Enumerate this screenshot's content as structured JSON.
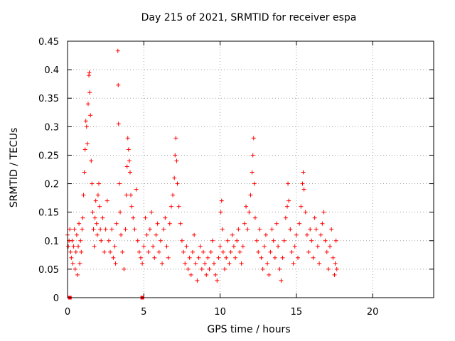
{
  "chart_data": {
    "type": "scatter",
    "title": "Day 215 of 2021, SRMTID for receiver espa",
    "xlabel": "GPS time / hours",
    "ylabel": "SRMTID / TECUs",
    "xlim": [
      0,
      24
    ],
    "ylim": [
      0,
      0.45
    ],
    "xticks": [
      0,
      5,
      10,
      15,
      20
    ],
    "yticks": [
      0,
      0.05,
      0.1,
      0.15,
      0.2,
      0.25,
      0.3,
      0.35,
      0.4,
      0.45
    ],
    "grid": true,
    "marker": "+",
    "color": "#ff0000",
    "series": [
      {
        "name": "SRMTID",
        "points": [
          [
            0.0,
            0.11
          ],
          [
            0.05,
            0.09
          ],
          [
            0.1,
            0.1
          ],
          [
            0.15,
            0.12
          ],
          [
            0.2,
            0.08
          ],
          [
            0.25,
            0.07
          ],
          [
            0.3,
            0.1
          ],
          [
            0.35,
            0.06
          ],
          [
            0.4,
            0.09
          ],
          [
            0.45,
            0.12
          ],
          [
            0.5,
            0.05
          ],
          [
            0.55,
            0.08
          ],
          [
            0.6,
            0.11
          ],
          [
            0.65,
            0.04
          ],
          [
            0.7,
            0.09
          ],
          [
            0.75,
            0.13
          ],
          [
            0.8,
            0.06
          ],
          [
            0.85,
            0.1
          ],
          [
            0.9,
            0.08
          ],
          [
            0.95,
            0.12
          ],
          [
            1.0,
            0.14
          ],
          [
            1.05,
            0.18
          ],
          [
            1.1,
            0.22
          ],
          [
            1.15,
            0.26
          ],
          [
            1.2,
            0.31
          ],
          [
            1.25,
            0.3
          ],
          [
            1.3,
            0.27
          ],
          [
            1.35,
            0.34
          ],
          [
            1.4,
            0.39
          ],
          [
            1.42,
            0.395
          ],
          [
            1.45,
            0.36
          ],
          [
            1.5,
            0.32
          ],
          [
            1.55,
            0.24
          ],
          [
            1.6,
            0.2
          ],
          [
            1.65,
            0.15
          ],
          [
            1.7,
            0.12
          ],
          [
            1.75,
            0.09
          ],
          [
            1.8,
            0.14
          ],
          [
            1.85,
            0.17
          ],
          [
            1.9,
            0.13
          ],
          [
            1.95,
            0.11
          ],
          [
            2.0,
            0.18
          ],
          [
            2.05,
            0.2
          ],
          [
            2.1,
            0.16
          ],
          [
            2.15,
            0.12
          ],
          [
            2.2,
            0.1
          ],
          [
            2.3,
            0.14
          ],
          [
            2.4,
            0.08
          ],
          [
            2.5,
            0.12
          ],
          [
            2.6,
            0.17
          ],
          [
            2.7,
            0.1
          ],
          [
            2.8,
            0.08
          ],
          [
            2.9,
            0.12
          ],
          [
            3.0,
            0.07
          ],
          [
            3.1,
            0.09
          ],
          [
            3.15,
            0.06
          ],
          [
            3.2,
            0.13
          ],
          [
            3.3,
            0.433
          ],
          [
            3.32,
            0.373
          ],
          [
            3.34,
            0.305
          ],
          [
            3.4,
            0.2
          ],
          [
            3.45,
            0.15
          ],
          [
            3.5,
            0.11
          ],
          [
            3.6,
            0.08
          ],
          [
            3.7,
            0.05
          ],
          [
            3.8,
            0.12
          ],
          [
            3.85,
            0.18
          ],
          [
            3.9,
            0.23
          ],
          [
            3.95,
            0.28
          ],
          [
            4.0,
            0.26
          ],
          [
            4.05,
            0.24
          ],
          [
            4.1,
            0.22
          ],
          [
            4.15,
            0.18
          ],
          [
            4.2,
            0.16
          ],
          [
            4.3,
            0.14
          ],
          [
            4.4,
            0.12
          ],
          [
            4.5,
            0.19
          ],
          [
            4.6,
            0.1
          ],
          [
            4.7,
            0.08
          ],
          [
            4.8,
            0.07
          ],
          [
            4.9,
            0.06
          ],
          [
            5.0,
            0.09
          ],
          [
            5.1,
            0.14
          ],
          [
            5.2,
            0.11
          ],
          [
            5.3,
            0.08
          ],
          [
            5.4,
            0.12
          ],
          [
            5.5,
            0.15
          ],
          [
            5.6,
            0.09
          ],
          [
            5.7,
            0.07
          ],
          [
            5.8,
            0.11
          ],
          [
            5.9,
            0.13
          ],
          [
            6.0,
            0.08
          ],
          [
            6.1,
            0.1
          ],
          [
            6.2,
            0.06
          ],
          [
            6.3,
            0.12
          ],
          [
            6.4,
            0.14
          ],
          [
            6.5,
            0.09
          ],
          [
            6.6,
            0.07
          ],
          [
            6.7,
            0.13
          ],
          [
            6.8,
            0.16
          ],
          [
            6.9,
            0.18
          ],
          [
            7.0,
            0.21
          ],
          [
            7.05,
            0.25
          ],
          [
            7.1,
            0.28
          ],
          [
            7.15,
            0.24
          ],
          [
            7.2,
            0.2
          ],
          [
            7.3,
            0.16
          ],
          [
            7.4,
            0.13
          ],
          [
            7.5,
            0.1
          ],
          [
            7.6,
            0.08
          ],
          [
            7.7,
            0.06
          ],
          [
            7.8,
            0.09
          ],
          [
            7.9,
            0.05
          ],
          [
            8.0,
            0.07
          ],
          [
            8.1,
            0.04
          ],
          [
            8.2,
            0.08
          ],
          [
            8.3,
            0.11
          ],
          [
            8.4,
            0.06
          ],
          [
            8.5,
            0.03
          ],
          [
            8.6,
            0.07
          ],
          [
            8.7,
            0.09
          ],
          [
            8.8,
            0.05
          ],
          [
            8.9,
            0.08
          ],
          [
            9.0,
            0.06
          ],
          [
            9.1,
            0.04
          ],
          [
            9.2,
            0.07
          ],
          [
            9.3,
            0.05
          ],
          [
            9.4,
            0.08
          ],
          [
            9.5,
            0.1
          ],
          [
            9.6,
            0.06
          ],
          [
            9.7,
            0.04
          ],
          [
            9.8,
            0.03
          ],
          [
            9.9,
            0.07
          ],
          [
            10.0,
            0.09
          ],
          [
            10.05,
            0.15
          ],
          [
            10.1,
            0.17
          ],
          [
            10.15,
            0.12
          ],
          [
            10.2,
            0.08
          ],
          [
            10.3,
            0.05
          ],
          [
            10.4,
            0.07
          ],
          [
            10.5,
            0.1
          ],
          [
            10.6,
            0.06
          ],
          [
            10.7,
            0.08
          ],
          [
            10.8,
            0.11
          ],
          [
            10.9,
            0.09
          ],
          [
            11.0,
            0.07
          ],
          [
            11.1,
            0.1
          ],
          [
            11.2,
            0.12
          ],
          [
            11.3,
            0.08
          ],
          [
            11.4,
            0.06
          ],
          [
            11.5,
            0.09
          ],
          [
            11.6,
            0.13
          ],
          [
            11.7,
            0.16
          ],
          [
            11.8,
            0.12
          ],
          [
            11.9,
            0.15
          ],
          [
            12.0,
            0.18
          ],
          [
            12.1,
            0.22
          ],
          [
            12.15,
            0.25
          ],
          [
            12.2,
            0.28
          ],
          [
            12.25,
            0.2
          ],
          [
            12.3,
            0.14
          ],
          [
            12.4,
            0.1
          ],
          [
            12.5,
            0.08
          ],
          [
            12.6,
            0.12
          ],
          [
            12.7,
            0.07
          ],
          [
            12.8,
            0.05
          ],
          [
            12.9,
            0.09
          ],
          [
            13.0,
            0.11
          ],
          [
            13.1,
            0.06
          ],
          [
            13.2,
            0.04
          ],
          [
            13.3,
            0.08
          ],
          [
            13.4,
            0.12
          ],
          [
            13.5,
            0.1
          ],
          [
            13.6,
            0.07
          ],
          [
            13.7,
            0.13
          ],
          [
            13.8,
            0.09
          ],
          [
            13.9,
            0.05
          ],
          [
            14.0,
            0.03
          ],
          [
            14.1,
            0.07
          ],
          [
            14.2,
            0.1
          ],
          [
            14.3,
            0.14
          ],
          [
            14.4,
            0.16
          ],
          [
            14.45,
            0.2
          ],
          [
            14.5,
            0.17
          ],
          [
            14.6,
            0.12
          ],
          [
            14.7,
            0.08
          ],
          [
            14.8,
            0.06
          ],
          [
            14.9,
            0.09
          ],
          [
            15.0,
            0.11
          ],
          [
            15.1,
            0.07
          ],
          [
            15.2,
            0.13
          ],
          [
            15.3,
            0.16
          ],
          [
            15.4,
            0.2
          ],
          [
            15.45,
            0.22
          ],
          [
            15.5,
            0.19
          ],
          [
            15.6,
            0.15
          ],
          [
            15.7,
            0.11
          ],
          [
            15.8,
            0.08
          ],
          [
            15.9,
            0.12
          ],
          [
            16.0,
            0.1
          ],
          [
            16.1,
            0.07
          ],
          [
            16.2,
            0.14
          ],
          [
            16.3,
            0.12
          ],
          [
            16.4,
            0.09
          ],
          [
            16.5,
            0.06
          ],
          [
            16.6,
            0.11
          ],
          [
            16.7,
            0.13
          ],
          [
            16.8,
            0.15
          ],
          [
            16.9,
            0.1
          ],
          [
            17.0,
            0.08
          ],
          [
            17.1,
            0.05
          ],
          [
            17.2,
            0.09
          ],
          [
            17.3,
            0.12
          ],
          [
            17.4,
            0.07
          ],
          [
            17.5,
            0.04
          ],
          [
            17.55,
            0.06
          ],
          [
            17.6,
            0.1
          ],
          [
            17.65,
            0.05
          ]
        ]
      }
    ],
    "axis_markers": [
      0.15,
      4.9
    ]
  }
}
